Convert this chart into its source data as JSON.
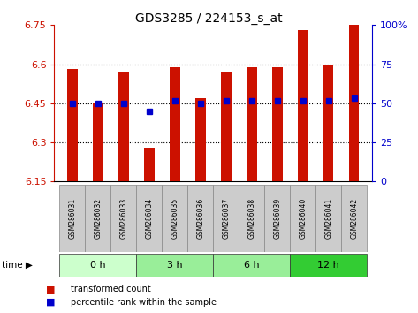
{
  "title": "GDS3285 / 224153_s_at",
  "samples": [
    "GSM286031",
    "GSM286032",
    "GSM286033",
    "GSM286034",
    "GSM286035",
    "GSM286036",
    "GSM286037",
    "GSM286038",
    "GSM286039",
    "GSM286040",
    "GSM286041",
    "GSM286042"
  ],
  "bar_values": [
    6.58,
    6.45,
    6.57,
    6.28,
    6.59,
    6.47,
    6.57,
    6.59,
    6.59,
    6.73,
    6.6,
    6.75
  ],
  "dot_values": [
    6.45,
    6.45,
    6.45,
    6.42,
    6.46,
    6.45,
    6.46,
    6.46,
    6.46,
    6.46,
    6.46,
    6.47
  ],
  "y_min": 6.15,
  "y_max": 6.75,
  "y_ticks": [
    6.15,
    6.3,
    6.45,
    6.6,
    6.75
  ],
  "y_tick_labels": [
    "6.15",
    "6.3",
    "6.45",
    "6.6",
    "6.75"
  ],
  "y2_ticks": [
    0,
    25,
    50,
    75,
    100
  ],
  "y2_tick_labels": [
    "0",
    "25",
    "50",
    "75",
    "100%"
  ],
  "time_colors": [
    "#ccffcc",
    "#99ee99",
    "#99ee99",
    "#33cc33"
  ],
  "time_labels": [
    "0 h",
    "3 h",
    "6 h",
    "12 h"
  ],
  "group_ranges": [
    [
      0,
      2
    ],
    [
      3,
      5
    ],
    [
      6,
      8
    ],
    [
      9,
      11
    ]
  ],
  "bar_color": "#cc1100",
  "dot_color": "#0000cc",
  "bg_sample": "#cccccc",
  "label_color_left": "#cc1100",
  "label_color_right": "#0000cc",
  "legend_labels": [
    "transformed count",
    "percentile rank within the sample"
  ]
}
